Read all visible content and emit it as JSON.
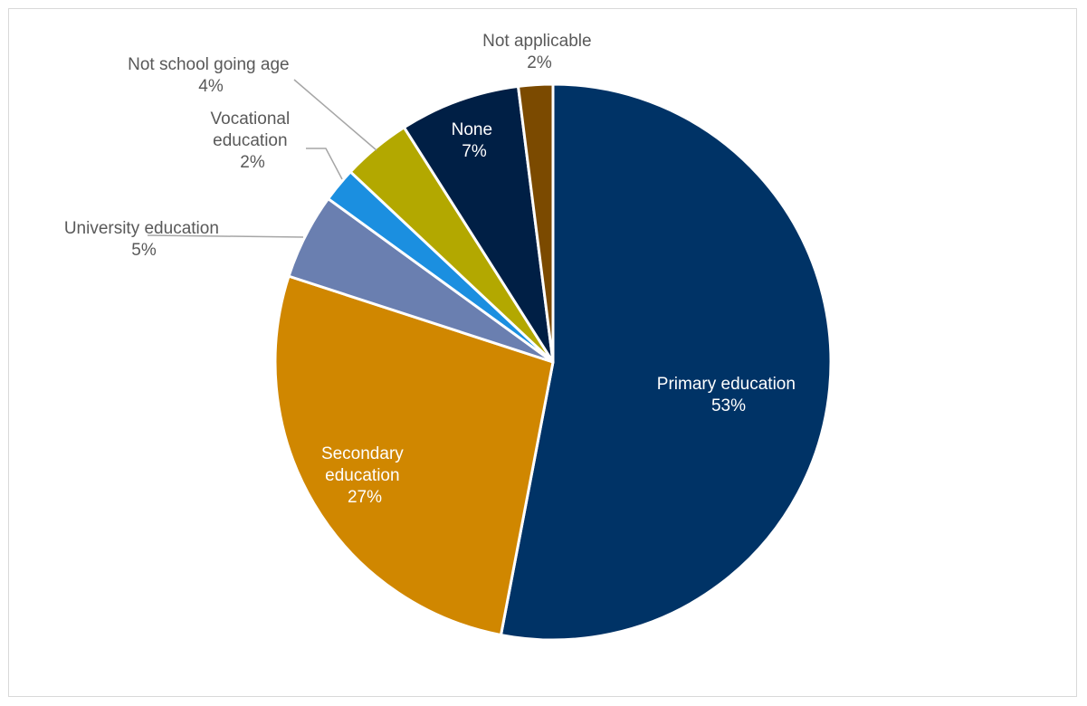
{
  "chart_data": {
    "type": "pie",
    "title": "",
    "start_angle_deg": 0,
    "direction": "clockwise",
    "slices": [
      {
        "name": "Primary education",
        "value": 53,
        "label": "53%",
        "color": "#003366"
      },
      {
        "name": "Secondary education",
        "value": 27,
        "label": "27%",
        "color": "#D08700"
      },
      {
        "name": "University education",
        "value": 5,
        "label": "5%",
        "color": "#6A7FB0"
      },
      {
        "name": "Vocational education",
        "value": 2,
        "label": "2%",
        "color": "#1B8FE0"
      },
      {
        "name": "Not school going age",
        "value": 4,
        "label": "4%",
        "color": "#B3A800"
      },
      {
        "name": "None",
        "value": 7,
        "label": "7%",
        "color": "#001F45"
      },
      {
        "name": "Not applicable",
        "value": 2,
        "label": "2%",
        "color": "#7B4A00"
      }
    ],
    "legend": "none",
    "label_text_colors": {
      "inside": "#ffffff",
      "outside": "#595959"
    }
  }
}
